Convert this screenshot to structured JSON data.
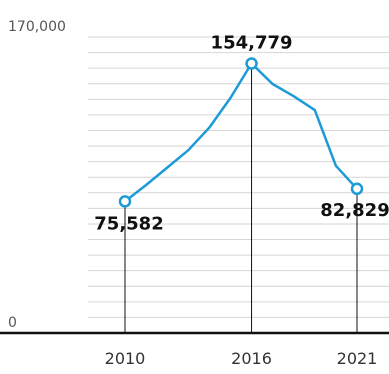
{
  "chart_data": {
    "type": "line",
    "title": "",
    "xlabel": "",
    "ylabel": "",
    "ylim": [
      0,
      170000
    ],
    "y_ticks": [
      {
        "value": 170000,
        "label": "170,000"
      },
      {
        "value": 0,
        "label": "0"
      }
    ],
    "x_ticks": [
      {
        "value": 2010,
        "label": "2010"
      },
      {
        "value": 2016,
        "label": "2016"
      },
      {
        "value": 2021,
        "label": "2021"
      }
    ],
    "grid": true,
    "series": [
      {
        "points": [
          {
            "x": 2010,
            "y": 75582
          },
          {
            "x": 2011,
            "y": 85000
          },
          {
            "x": 2012,
            "y": 95000
          },
          {
            "x": 2013,
            "y": 105000
          },
          {
            "x": 2014,
            "y": 118000
          },
          {
            "x": 2015,
            "y": 135000
          },
          {
            "x": 2016,
            "y": 154779
          },
          {
            "x": 2017,
            "y": 143000
          },
          {
            "x": 2018,
            "y": 136000
          },
          {
            "x": 2019,
            "y": 128000
          },
          {
            "x": 2020,
            "y": 96000
          },
          {
            "x": 2021,
            "y": 82829
          }
        ],
        "color": "#1e9bd7"
      }
    ],
    "data_labels": [
      {
        "x": 2010,
        "y": 75582,
        "text": "75,582"
      },
      {
        "x": 2016,
        "y": 154779,
        "text": "154,779"
      },
      {
        "x": 2021,
        "y": 82829,
        "text": "82,829"
      }
    ],
    "colors": {
      "line": "#1e9bd7",
      "grid": "#d6d6d6",
      "axis": "#111111",
      "marker_fill": "#ffffff"
    }
  }
}
